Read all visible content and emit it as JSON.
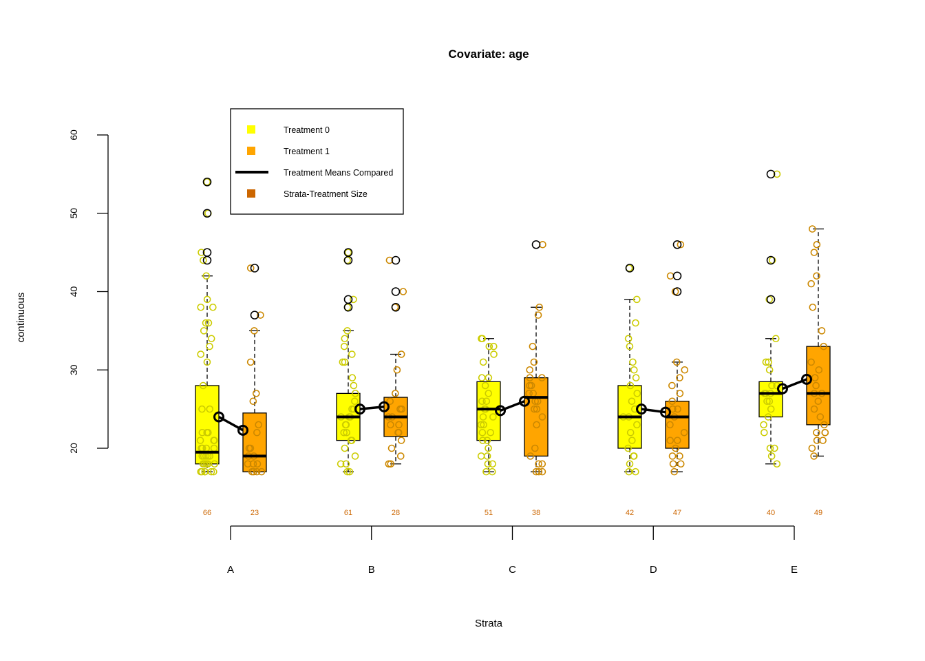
{
  "chart_data": {
    "type": "box",
    "title": "Covariate: age",
    "xlabel": "Strata",
    "ylabel": "continuous",
    "ylim": [
      20,
      60
    ],
    "yticks": [
      "20",
      "30",
      "40",
      "50",
      "60"
    ],
    "colors": {
      "treatment0": "#FFFF00",
      "treatment1": "#FFA500",
      "size_label": "#CC6600",
      "points0": "#CCCC00",
      "points1": "#CC8800",
      "mean_line": "#000000"
    },
    "legend": {
      "placement": "top-left",
      "entries": [
        {
          "label": "Treatment 0",
          "symbol": "square",
          "color": "#FFFF00"
        },
        {
          "label": "Treatment 1",
          "symbol": "square",
          "color": "#FFA500"
        },
        {
          "label": "Treatment Means Compared",
          "symbol": "line",
          "color": "#000000"
        },
        {
          "label": "Strata-Treatment Size",
          "symbol": "square",
          "color": "#CC6600"
        }
      ]
    },
    "strata": [
      {
        "label": "A",
        "groups": [
          {
            "treatment": 0,
            "n": "66",
            "min": 17,
            "q1": 18,
            "median": 19.5,
            "q3": 28,
            "max": 42,
            "mean": 24,
            "outliers": [
              44,
              45,
              50,
              54
            ],
            "points": [
              54,
              50,
              45,
              44,
              42,
              39,
              38,
              38,
              36,
              36,
              35,
              34,
              33,
              32,
              31,
              28,
              25,
              25,
              22,
              22,
              22,
              21,
              21,
              21,
              20,
              20,
              20,
              20,
              19,
              19,
              19,
              19,
              19,
              18,
              18,
              18,
              18,
              18,
              17,
              17,
              17,
              17,
              17,
              17
            ]
          },
          {
            "treatment": 1,
            "n": "23",
            "min": 17,
            "q1": 17,
            "median": 19,
            "q3": 24.5,
            "max": 35,
            "mean": 22.3,
            "outliers": [
              37,
              43
            ],
            "points": [
              43,
              37,
              35,
              31,
              27,
              26,
              23,
              22,
              20,
              20,
              19,
              19,
              18,
              18,
              18,
              17,
              17,
              17,
              17
            ]
          }
        ]
      },
      {
        "label": "B",
        "groups": [
          {
            "treatment": 0,
            "n": "61",
            "min": 17,
            "q1": 21,
            "median": 24,
            "q3": 27,
            "max": 35,
            "mean": 25,
            "outliers": [
              38,
              39,
              44,
              45
            ],
            "points": [
              45,
              44,
              39,
              38,
              35,
              34,
              33,
              32,
              31,
              31,
              29,
              28,
              27,
              26,
              25,
              25,
              24,
              24,
              24,
              23,
              23,
              22,
              22,
              21,
              21,
              20,
              19,
              18,
              18,
              17,
              17
            ]
          },
          {
            "treatment": 1,
            "n": "28",
            "min": 18,
            "q1": 21.5,
            "median": 24,
            "q3": 26.5,
            "max": 32,
            "mean": 25.3,
            "outliers": [
              38,
              40,
              44
            ],
            "points": [
              44,
              40,
              38,
              32,
              30,
              27,
              26,
              25,
              25,
              24,
              24,
              23,
              23,
              22,
              22,
              21,
              20,
              19,
              18,
              18
            ]
          }
        ]
      },
      {
        "label": "C",
        "groups": [
          {
            "treatment": 0,
            "n": "51",
            "min": 17,
            "q1": 21,
            "median": 25,
            "q3": 28.5,
            "max": 34,
            "mean": 24.8,
            "outliers": [],
            "points": [
              34,
              34,
              33,
              33,
              32,
              31,
              29,
              29,
              28,
              27,
              26,
              26,
              25,
              25,
              24,
              24,
              23,
              23,
              22,
              22,
              21,
              21,
              20,
              19,
              19,
              18,
              18,
              17,
              17
            ]
          },
          {
            "treatment": 1,
            "n": "38",
            "min": 17,
            "q1": 19,
            "median": 26.5,
            "q3": 29,
            "max": 38,
            "mean": 26,
            "outliers": [
              46
            ],
            "points": [
              46,
              38,
              37,
              33,
              31,
              30,
              29,
              29,
              28,
              28,
              27,
              27,
              26,
              26,
              25,
              25,
              24,
              23,
              20,
              19,
              18,
              18,
              17,
              17,
              17
            ]
          }
        ]
      },
      {
        "label": "D",
        "groups": [
          {
            "treatment": 0,
            "n": "42",
            "min": 17,
            "q1": 20,
            "median": 24,
            "q3": 28,
            "max": 39,
            "mean": 25,
            "outliers": [
              43
            ],
            "points": [
              43,
              39,
              36,
              34,
              33,
              31,
              30,
              29,
              28,
              27,
              26,
              25,
              24,
              24,
              23,
              22,
              21,
              20,
              19,
              19,
              18,
              17,
              17
            ]
          },
          {
            "treatment": 1,
            "n": "47",
            "min": 17,
            "q1": 20,
            "median": 24,
            "q3": 26,
            "max": 31,
            "mean": 24.6,
            "outliers": [
              40,
              42,
              46
            ],
            "points": [
              46,
              42,
              40,
              31,
              30,
              29,
              28,
              27,
              26,
              25,
              25,
              24,
              23,
              22,
              21,
              21,
              20,
              19,
              19,
              18,
              18,
              17
            ]
          }
        ]
      },
      {
        "label": "E",
        "groups": [
          {
            "treatment": 0,
            "n": "40",
            "min": 18,
            "q1": 24,
            "median": 27,
            "q3": 28.5,
            "max": 34,
            "mean": 27.6,
            "outliers": [
              39,
              44,
              55
            ],
            "points": [
              55,
              44,
              39,
              34,
              31,
              31,
              30,
              28,
              28,
              27,
              27,
              27,
              26,
              26,
              25,
              24,
              23,
              22,
              20,
              20,
              19,
              18
            ]
          },
          {
            "treatment": 1,
            "n": "49",
            "min": 19,
            "q1": 23,
            "median": 27,
            "q3": 33,
            "max": 48,
            "mean": 28.8,
            "outliers": [],
            "points": [
              48,
              46,
              45,
              42,
              41,
              38,
              35,
              33,
              31,
              30,
              29,
              28,
              27,
              27,
              26,
              25,
              24,
              23,
              22,
              22,
              22,
              21,
              21,
              20,
              19
            ]
          }
        ]
      }
    ]
  }
}
